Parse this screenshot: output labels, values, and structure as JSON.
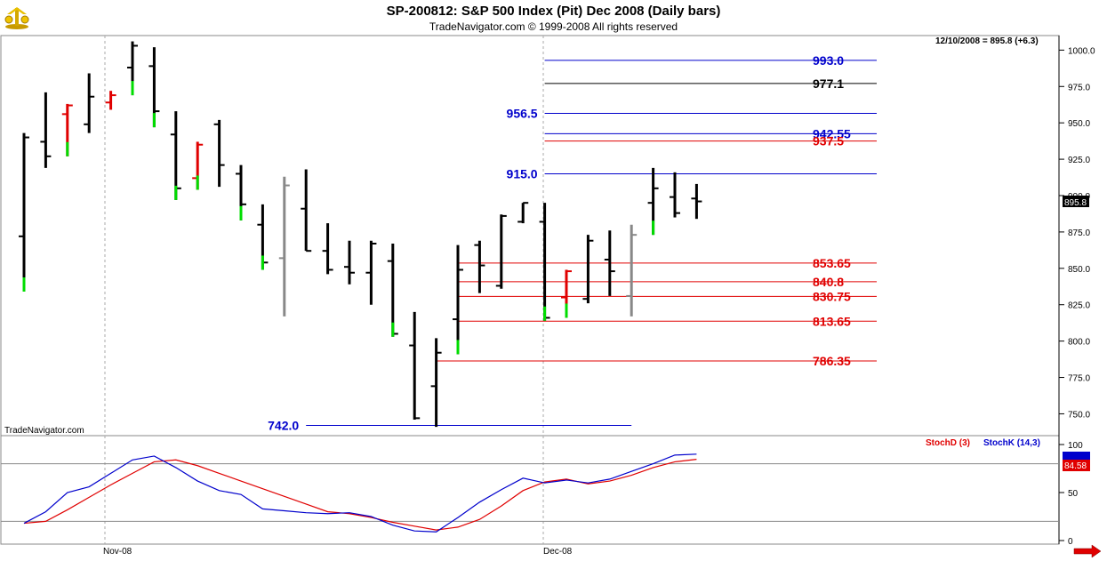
{
  "header": {
    "title": "SP-200812:  S&P 500 Index (Pit) Dec 2008  (Daily bars)",
    "copyright": "TradeNavigator.com © 1999-2008 All rights reserved"
  },
  "chart_data": [
    {
      "type": "ohlc",
      "last_info": "12/10/2008 = 895.8 (+6.3)",
      "last_price_label": "895.8",
      "watermark": "TradeNavigator.com",
      "x_labels": [
        "Nov-08",
        "Dec-08"
      ],
      "ylim": [
        735,
        1010
      ],
      "y_ticks": [
        750,
        775,
        800,
        825,
        850,
        875,
        900,
        925,
        950,
        975,
        1000
      ],
      "y_tick_labels": [
        "750.0",
        "775.0",
        "800.0",
        "825.0",
        "850.0",
        "875.0",
        "900.0",
        "925.0",
        "950.0",
        "975.0",
        "1000.0"
      ],
      "bars": [
        {
          "o": 872,
          "h": 943,
          "l": 834,
          "c": 940,
          "color": "#000000",
          "mark": "#00dd00"
        },
        {
          "o": 937,
          "h": 971,
          "l": 919,
          "c": 927,
          "color": "#000000"
        },
        {
          "o": 956,
          "h": 963,
          "l": 927,
          "c": 962,
          "color": "#e00000",
          "mark": "#00dd00"
        },
        {
          "o": 949,
          "h": 984,
          "l": 943,
          "c": 968,
          "color": "#000000"
        },
        {
          "o": 964,
          "h": 972,
          "l": 959,
          "c": 969,
          "color": "#e00000"
        },
        {
          "o": 988,
          "h": 1006,
          "l": 969,
          "c": 1003,
          "color": "#000000",
          "mark": "#00dd00"
        },
        {
          "o": 989,
          "h": 1002,
          "l": 947,
          "c": 958,
          "color": "#000000",
          "mark": "#00dd00"
        },
        {
          "o": 942,
          "h": 958,
          "l": 897,
          "c": 905,
          "color": "#000000",
          "mark": "#00dd00"
        },
        {
          "o": 912,
          "h": 937,
          "l": 904,
          "c": 935,
          "color": "#e00000",
          "mark": "#00dd00"
        },
        {
          "o": 949,
          "h": 952,
          "l": 906,
          "c": 921,
          "color": "#000000"
        },
        {
          "o": 915,
          "h": 921,
          "l": 883,
          "c": 894,
          "color": "#000000",
          "mark": "#00dd00"
        },
        {
          "o": 880,
          "h": 894,
          "l": 849,
          "c": 854,
          "color": "#000000",
          "mark": "#00dd00"
        },
        {
          "o": 857,
          "h": 913,
          "l": 817,
          "c": 907,
          "color": "#888888"
        },
        {
          "o": 891,
          "h": 918,
          "l": 862,
          "c": 862,
          "color": "#000000"
        },
        {
          "o": 862,
          "h": 881,
          "l": 846,
          "c": 849,
          "color": "#000000"
        },
        {
          "o": 851,
          "h": 869,
          "l": 839,
          "c": 847,
          "color": "#000000"
        },
        {
          "o": 847,
          "h": 869,
          "l": 825,
          "c": 867,
          "color": "#000000"
        },
        {
          "o": 855,
          "h": 867,
          "l": 803,
          "c": 805,
          "color": "#000000",
          "mark": "#00dd00"
        },
        {
          "o": 797,
          "h": 820,
          "l": 746,
          "c": 747,
          "color": "#000000"
        },
        {
          "o": 769,
          "h": 802,
          "l": 741,
          "c": 792,
          "color": "#000000"
        },
        {
          "o": 815,
          "h": 866,
          "l": 791,
          "c": 849,
          "color": "#000000",
          "mark": "#00dd00"
        },
        {
          "o": 866,
          "h": 869,
          "l": 833,
          "c": 852,
          "color": "#000000"
        },
        {
          "o": 838,
          "h": 887,
          "l": 836,
          "c": 886,
          "color": "#000000"
        },
        {
          "o": 882,
          "h": 895,
          "l": 881,
          "c": 895,
          "color": "#000000"
        },
        {
          "o": 882,
          "h": 895,
          "l": 814,
          "c": 816,
          "color": "#000000",
          "mark": "#00dd00"
        },
        {
          "o": 830,
          "h": 849,
          "l": 816,
          "c": 848,
          "color": "#e00000",
          "mark": "#00dd00"
        },
        {
          "o": 829,
          "h": 873,
          "l": 826,
          "c": 869,
          "color": "#000000"
        },
        {
          "o": 856,
          "h": 876,
          "l": 831,
          "c": 848,
          "color": "#000000"
        },
        {
          "o": 831,
          "h": 880,
          "l": 817,
          "c": 873,
          "color": "#888888"
        },
        {
          "o": 895,
          "h": 919,
          "l": 873,
          "c": 905,
          "color": "#000000",
          "mark": "#00dd00"
        },
        {
          "o": 899,
          "h": 916,
          "l": 885,
          "c": 888,
          "color": "#000000"
        },
        {
          "o": 898,
          "h": 908,
          "l": 884,
          "c": 896,
          "color": "#000000"
        }
      ],
      "levels": [
        {
          "value": 993.0,
          "label": "993.0",
          "color": "#0000cc",
          "line_from_bar": 24,
          "label_pos": "right"
        },
        {
          "value": 977.1,
          "label": "977.1",
          "color": "#000000",
          "line_from_bar": 24,
          "label_pos": "right"
        },
        {
          "value": 956.5,
          "label": "956.5",
          "color": "#0000cc",
          "line_from_bar": 24,
          "label_pos": "left"
        },
        {
          "value": 942.55,
          "label": "942.55",
          "color": "#0000cc",
          "line_from_bar": 24,
          "label_pos": "right"
        },
        {
          "value": 937.5,
          "label": "937.5",
          "color": "#e00000",
          "line_from_bar": 24,
          "label_pos": "right"
        },
        {
          "value": 915.0,
          "label": "915.0",
          "color": "#0000cc",
          "line_from_bar": 24,
          "label_pos": "left"
        },
        {
          "value": 853.65,
          "label": "853.65",
          "color": "#e00000",
          "line_from_bar": 20,
          "label_pos": "right"
        },
        {
          "value": 840.8,
          "label": "840.8",
          "color": "#e00000",
          "line_from_bar": 20,
          "label_pos": "right"
        },
        {
          "value": 830.75,
          "label": "830.75",
          "color": "#e00000",
          "line_from_bar": 20,
          "label_pos": "right"
        },
        {
          "value": 813.65,
          "label": "813.65",
          "color": "#e00000",
          "line_from_bar": 20,
          "label_pos": "right"
        },
        {
          "value": 786.35,
          "label": "786.35",
          "color": "#e00000",
          "line_from_bar": 19,
          "label_pos": "right"
        },
        {
          "value": 742.0,
          "label": "742.0",
          "color": "#0000cc",
          "line_from_bar": 13,
          "line_to_bar": 28,
          "label_pos": "left"
        }
      ]
    },
    {
      "type": "line",
      "name": "stochastic",
      "legend": [
        "StochD (3)",
        "StochK (14,3)"
      ],
      "ylim": [
        0,
        100
      ],
      "y_ticks": [
        0,
        50,
        100
      ],
      "reference_lines": [
        20,
        80
      ],
      "readouts": [
        {
          "label": "84.58",
          "color": "#e00000"
        },
        {
          "label": "",
          "color": "#0000cc"
        }
      ],
      "series": [
        {
          "name": "StochD (3)",
          "color": "#e00000",
          "values": [
            18,
            20,
            32,
            45,
            58,
            70,
            82,
            84,
            78,
            70,
            62,
            54,
            46,
            38,
            30,
            28,
            24,
            19,
            15,
            11,
            14,
            22,
            36,
            52,
            61,
            64,
            59,
            62,
            68,
            76,
            82,
            84.58
          ]
        },
        {
          "name": "StochK (14,3)",
          "color": "#0000cc",
          "values": [
            18,
            30,
            50,
            56,
            70,
            84,
            88,
            76,
            62,
            52,
            48,
            33,
            31,
            29,
            28,
            29,
            25,
            16,
            10,
            9,
            24,
            40,
            53,
            65,
            60,
            63,
            60,
            64,
            72,
            80,
            89,
            90
          ]
        }
      ]
    }
  ]
}
